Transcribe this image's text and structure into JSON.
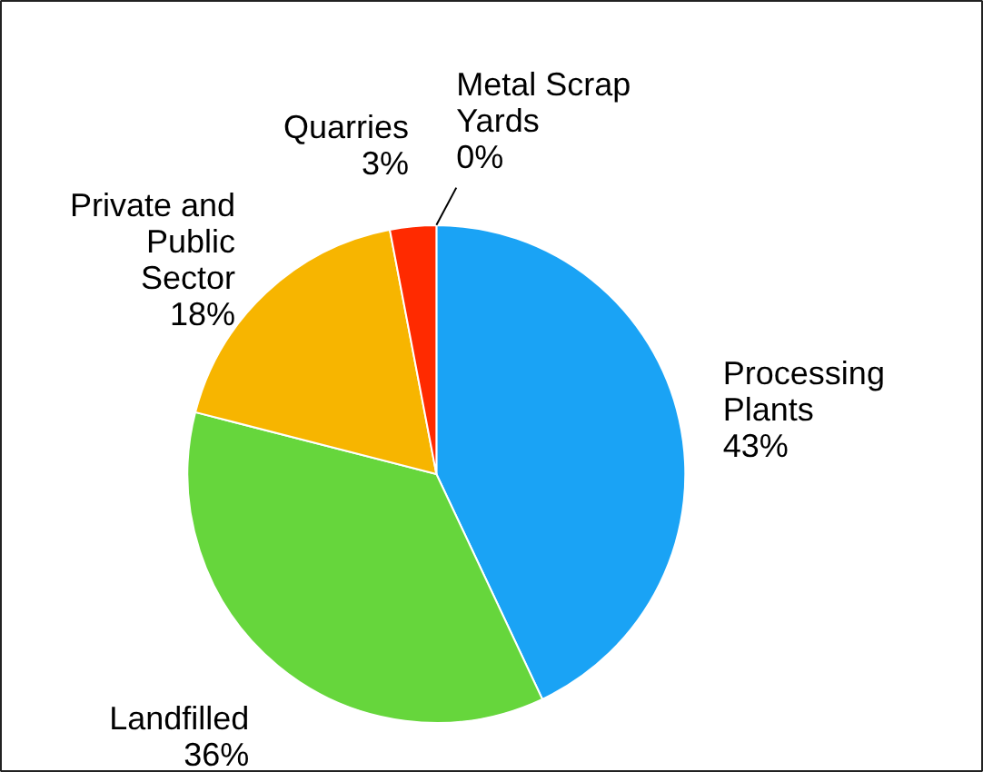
{
  "chart_data": {
    "type": "pie",
    "categories": [
      "Processing Plants",
      "Landfilled",
      "Private and Public Sector",
      "Quarries",
      "Metal Scrap Yards"
    ],
    "values": [
      43,
      36,
      18,
      3,
      0
    ],
    "colors": [
      "#1aa3f5",
      "#66d63c",
      "#f7b500",
      "#ff2a00",
      "#888888"
    ],
    "value_labels": [
      "43%",
      "36%",
      "18%",
      "3%",
      "0%"
    ]
  }
}
